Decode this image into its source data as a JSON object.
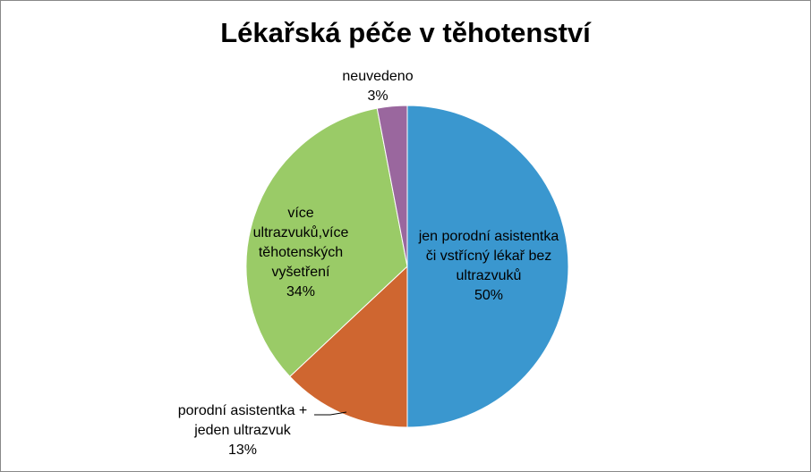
{
  "chart_data": {
    "type": "pie",
    "title": "Lékařská péče v těhotenství",
    "categories": [
      "jen porodní asistentka či vstřícný lékař bez ultrazvuků",
      "porodní asistentka + jeden ultrazvuk",
      "více ultrazvuků,více těhotenských vyšetření",
      "neuvedeno"
    ],
    "values": [
      50,
      13,
      34,
      3
    ],
    "value_labels": [
      "50%",
      "13%",
      "34%",
      "3%"
    ],
    "colors": [
      "#3a97cf",
      "#cf6630",
      "#9acb67",
      "#9a679e"
    ]
  }
}
